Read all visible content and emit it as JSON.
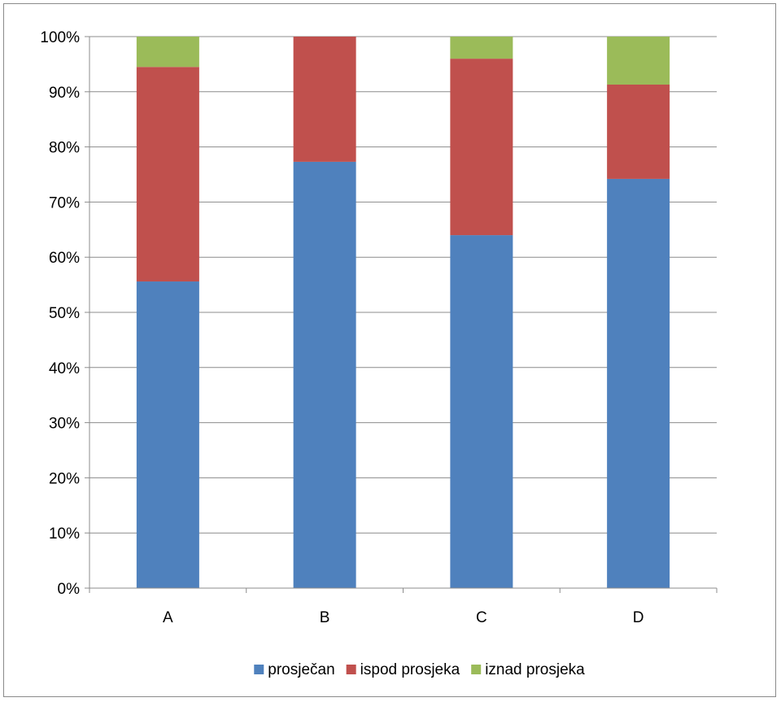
{
  "chart_data": {
    "type": "bar",
    "stacked": true,
    "percent_stacked": true,
    "categories": [
      "A",
      "B",
      "C",
      "D"
    ],
    "series": [
      {
        "name": "prosječan",
        "color": "#4F81BD",
        "values": [
          55.6,
          77.3,
          64.0,
          74.2
        ]
      },
      {
        "name": "ispod prosjeka",
        "color": "#C0504D",
        "values": [
          38.9,
          22.7,
          32.0,
          17.1
        ]
      },
      {
        "name": "iznad prosjeka",
        "color": "#9BBB59",
        "values": [
          5.5,
          0.0,
          4.0,
          8.7
        ]
      }
    ],
    "ylim": [
      0,
      100
    ],
    "y_ticks": [
      0,
      10,
      20,
      30,
      40,
      50,
      60,
      70,
      80,
      90,
      100
    ],
    "y_tick_labels": [
      "0%",
      "10%",
      "20%",
      "30%",
      "40%",
      "50%",
      "60%",
      "70%",
      "80%",
      "90%",
      "100%"
    ],
    "grid": true,
    "legend_position": "bottom"
  }
}
